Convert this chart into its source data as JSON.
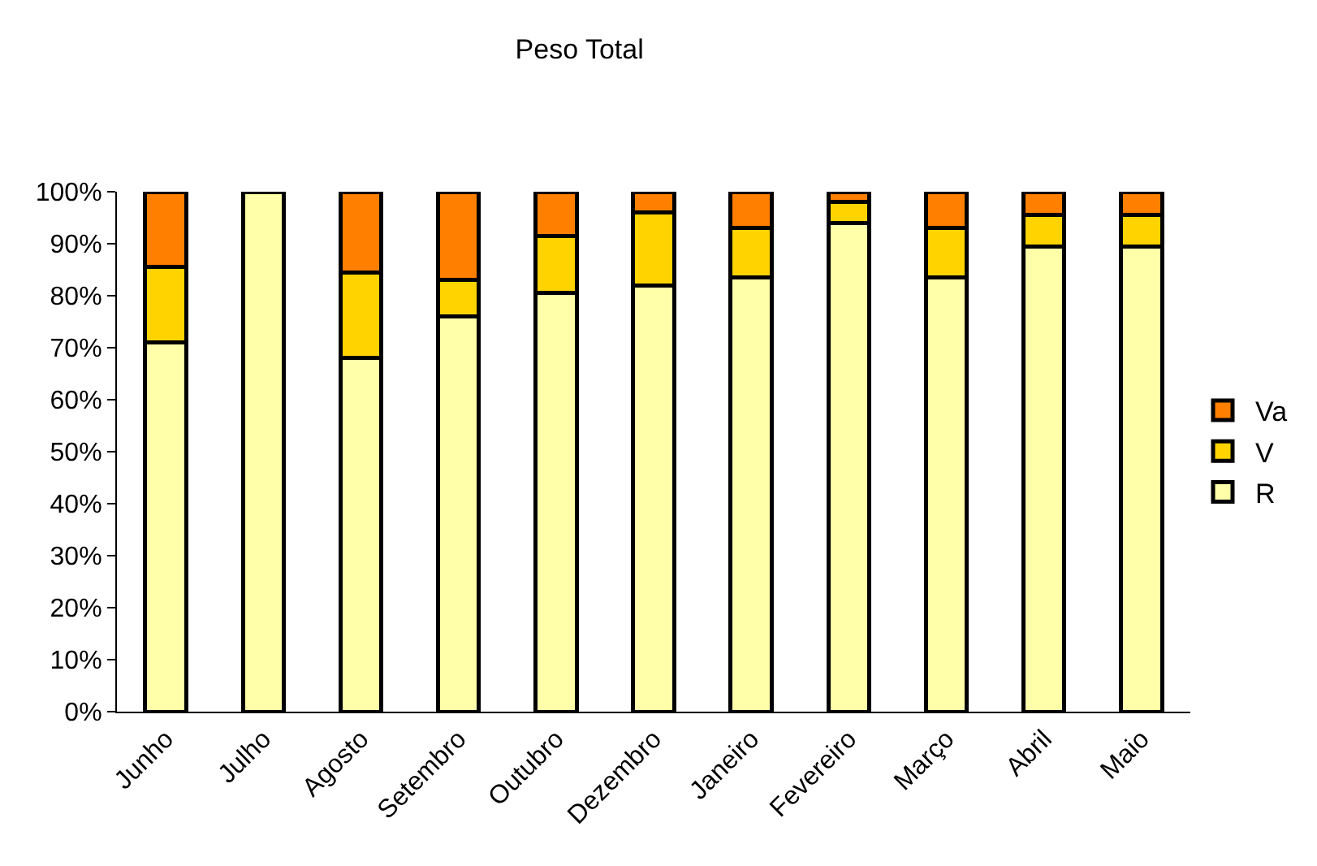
{
  "chart_data": {
    "type": "bar",
    "title": "Peso Total",
    "stacked": true,
    "grid": false,
    "legend": "right",
    "categories": [
      "Junho",
      "Julho",
      "Agosto",
      "Setembro",
      "Outubro",
      "Dezembro",
      "Janeiro",
      "Fevereiro",
      "Março",
      "Abril",
      "Maio"
    ],
    "series": [
      {
        "name": "R",
        "color": "#ffffaa",
        "values": [
          71,
          100,
          68,
          76,
          80.5,
          82,
          83.5,
          94,
          83.5,
          89.5,
          89.5
        ]
      },
      {
        "name": "V",
        "color": "#ffd300",
        "values": [
          14.5,
          null,
          16.5,
          7,
          11,
          14,
          9.5,
          4,
          9.5,
          6,
          6
        ]
      },
      {
        "name": "Va",
        "color": "#ff8000",
        "values": [
          14.5,
          null,
          15.5,
          17,
          8.5,
          4,
          7,
          2,
          7,
          4.5,
          4.5
        ]
      }
    ],
    "ylim": [
      0,
      100
    ],
    "yticks": [
      {
        "value": 0,
        "label": "0%"
      },
      {
        "value": 10,
        "label": "10%"
      },
      {
        "value": 20,
        "label": "20%"
      },
      {
        "value": 30,
        "label": "30%"
      },
      {
        "value": 40,
        "label": "40%"
      },
      {
        "value": 50,
        "label": "50%"
      },
      {
        "value": 60,
        "label": "60%"
      },
      {
        "value": 70,
        "label": "70%"
      },
      {
        "value": 80,
        "label": "80%"
      },
      {
        "value": 90,
        "label": "90%"
      },
      {
        "value": 100,
        "label": "100%"
      }
    ]
  }
}
